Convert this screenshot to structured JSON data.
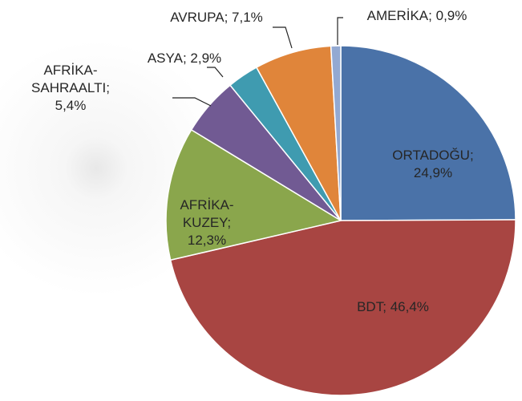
{
  "chart_data": {
    "type": "pie",
    "categories": [
      "ORTADOĞU",
      "BDT",
      "AFRİKA-KUZEY",
      "AFRİKA-SAHRAALTI",
      "ASYA",
      "AVRUPA",
      "AMERİKA"
    ],
    "values": [
      24.9,
      46.4,
      12.3,
      5.4,
      2.9,
      7.1,
      0.9
    ],
    "value_labels": [
      "24,9%",
      "46,4%",
      "12,3%",
      "5,4%",
      "2,9%",
      "7,1%",
      "0,9%"
    ],
    "label_separator": ";",
    "colors": [
      "#4a72a8",
      "#a84542",
      "#8aa64c",
      "#715a93",
      "#3f9bb0",
      "#e0853a",
      "#93a9d2"
    ]
  }
}
